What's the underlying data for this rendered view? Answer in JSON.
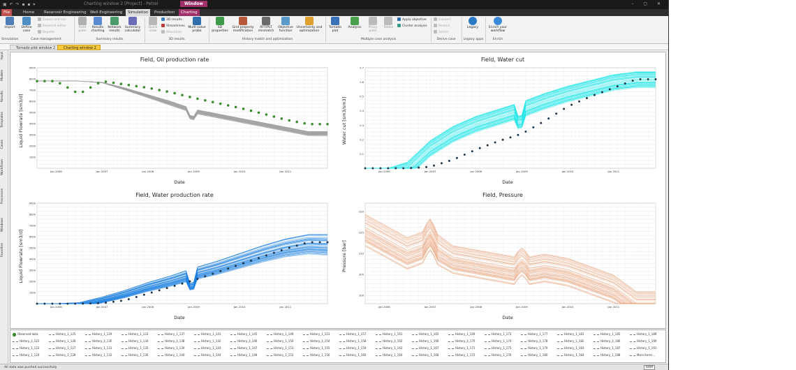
{
  "titlebar": {
    "quick_access": "▣ ↶ ↷ ▪ ▪ ▾",
    "document": "Charting window 2 [Project] - Petrel",
    "window_tag": "Window",
    "window_buttons": "– ▢ ✕"
  },
  "ribbon_tabs": [
    {
      "label": "File"
    },
    {
      "label": "Home"
    },
    {
      "label": "Reservoir Engineering"
    },
    {
      "label": "Well Engineering"
    },
    {
      "label": "Simulation"
    },
    {
      "label": "Production"
    },
    {
      "label": "Charting"
    }
  ],
  "ribbon": {
    "import": "Import",
    "define_case": "Define case",
    "export_and_run": "Export and run",
    "keyword_editor": "Keyword editor",
    "reports": "Reports",
    "group_simulation": "Simulation",
    "group_case_mgmt": "Case management",
    "field_plots": "Field plots",
    "results_charting": "Results charting",
    "network_results": "Network results",
    "summary_calculator": "Summary calculator",
    "group_summary": "Summary results",
    "quick_view": "Quick view",
    "results_3d": "3D results",
    "streamlines": "Streamlines",
    "allocation": "Allocation",
    "multi_value_probe": "Multi-value probe",
    "group_3d": "3D results",
    "sd_properties": "SD properties",
    "grid_property_mod": "Grid property modification",
    "rft_plt_mismatch": "RFT/PLT mismatch",
    "objective_function": "Objective function",
    "uncertainty_opt": "Uncertainty and optimization",
    "group_history": "History match and optimization",
    "tornado_plot": "Tornado plot",
    "analysis": "Analysis",
    "proxy_plots": "Proxy plots",
    "tables": "Tables",
    "apply_objective": "Apply objective",
    "cluster_analysis": "Cluster analysis",
    "group_multi": "Multiple case analysis",
    "convert": "Convert",
    "restart": "Restart",
    "sector": "Sector",
    "group_deriv": "Derive case",
    "legacy": "Legacy",
    "group_legacy": "Legacy apps",
    "enrich": "Enrich your workflow",
    "group_enrich": "Enrich"
  },
  "doc_tabs": {
    "tab1": "Tornado plot window 2",
    "tab2": "Charting window 2"
  },
  "sidebar_tabs": [
    "Input",
    "Models",
    "Results",
    "Templates",
    "Cases",
    "Workflows",
    "Processes",
    "Windows",
    "Favorites"
  ],
  "colors": {
    "oil_history": "#a0a0a0",
    "oil_observed": "#3a9a2a",
    "watercut_history": "#20e6e8",
    "water_history": "#1a7fe0",
    "pressure_history": "#e8a27a",
    "observed_dark": "#1d3a52"
  },
  "charts": [
    {
      "title": "Field, Oil production rate",
      "ylabel": "Liquid Flowrate [sm3/d]",
      "xlabel": "Date",
      "yticks": [
        "1000",
        "2000",
        "3000",
        "4000",
        "5000",
        "6000",
        "7000",
        "8000",
        "9000"
      ],
      "xticks": [
        "Jan 2006",
        "Jan 2007",
        "Jan 2008",
        "Jan 2009",
        "Jan 2010",
        "Jan 2011"
      ]
    },
    {
      "title": "Field, Water cut",
      "ylabel": "Water cut [sm3/sm3]",
      "xlabel": "Date",
      "yticks": [
        "0.1",
        "0.2",
        "0.3",
        "0.4",
        "0.5",
        "0.6",
        "0.7"
      ],
      "xticks": [
        "Jan 2006",
        "Jan 2007",
        "Jan 2008",
        "Jan 2009",
        "Jan 2010",
        "Jan 2011"
      ]
    },
    {
      "title": "Field, Water production rate",
      "ylabel": "Liquid Flowrate [sm3/d]",
      "xlabel": "Date",
      "yticks": [
        "1000",
        "2000",
        "3000",
        "4000",
        "5000",
        "6000",
        "7000",
        "8000",
        "9000"
      ],
      "xticks": [
        "Jan 2006",
        "Jan 2007",
        "Jan 2008",
        "Jan 2009",
        "Jan 2010",
        "Jan 2011"
      ]
    },
    {
      "title": "Field, Pressure",
      "ylabel": "Pressure [bar]",
      "xlabel": "Date",
      "yticks": [
        "300",
        "305",
        "310",
        "315",
        "320"
      ],
      "xticks": [
        "Jan 2006",
        "Jan 2007",
        "Jan 2008",
        "Jan 2009",
        "Jan 2010",
        "Jan 2011"
      ]
    }
  ],
  "chart_data": [
    {
      "type": "line",
      "title": "Field, Oil production rate",
      "xlabel": "Date",
      "ylabel": "Liquid Flowrate [sm3/d]",
      "ylim": [
        0,
        9000
      ],
      "x": [
        "2005-07",
        "2006-01",
        "2006-07",
        "2007-01",
        "2007-07",
        "2008-01",
        "2008-07",
        "2009-01",
        "2009-07",
        "2010-01",
        "2010-07",
        "2011-01",
        "2011-07"
      ],
      "series": [
        {
          "name": "Observed data",
          "values": [
            7800,
            7800,
            6650,
            7800,
            7500,
            7200,
            6800,
            6300,
            5850,
            5400,
            4900,
            4350,
            3950
          ]
        },
        {
          "values": [
            7800,
            7800,
            7800,
            7700,
            7200,
            6600,
            6000,
            5300,
            4900,
            4500,
            4100,
            3700,
            3300
          ]
        },
        {
          "values": [
            7800,
            7800,
            7800,
            7650,
            7000,
            6300,
            5600,
            4900,
            4500,
            4100,
            3700,
            3300,
            2900
          ]
        }
      ]
    },
    {
      "type": "line",
      "title": "Field, Water cut",
      "xlabel": "Date",
      "ylabel": "Water cut [sm3/sm3]",
      "ylim": [
        0,
        0.7
      ],
      "x": [
        "2005-07",
        "2006-01",
        "2006-07",
        "2007-01",
        "2007-07",
        "2008-01",
        "2008-07",
        "2009-01",
        "2009-07",
        "2010-01",
        "2010-07",
        "2011-01",
        "2011-07"
      ],
      "series": [
        {
          "name": "Observed data",
          "values": [
            0,
            0,
            0,
            0.01,
            0.06,
            0.13,
            0.19,
            0.24,
            0.33,
            0.43,
            0.5,
            0.56,
            0.62
          ]
        },
        {
          "values": [
            0,
            0,
            0.05,
            0.2,
            0.3,
            0.37,
            0.42,
            0.47,
            0.53,
            0.58,
            0.62,
            0.66,
            0.68
          ]
        }
      ]
    },
    {
      "type": "line",
      "title": "Field, Water production rate",
      "xlabel": "Date",
      "ylabel": "Liquid Flowrate [sm3/d]",
      "ylim": [
        0,
        9000
      ],
      "x": [
        "2005-07",
        "2006-01",
        "2006-07",
        "2007-01",
        "2007-07",
        "2008-01",
        "2008-07",
        "2009-01",
        "2009-07",
        "2010-01",
        "2010-07",
        "2011-01",
        "2011-07"
      ],
      "series": [
        {
          "name": "Observed data",
          "values": [
            0,
            0,
            0,
            50,
            300,
            900,
            1500,
            2100,
            2800,
            3500,
            4200,
            4900,
            5500
          ]
        },
        {
          "values": [
            0,
            0,
            100,
            600,
            1200,
            1900,
            2500,
            3200,
            3800,
            4500,
            5200,
            5800,
            6200
          ]
        }
      ]
    },
    {
      "type": "line",
      "title": "Field, Pressure",
      "xlabel": "Date",
      "ylabel": "Pressure [bar]",
      "ylim": [
        298,
        322
      ],
      "x": [
        "2005-07",
        "2006-01",
        "2006-07",
        "2007-01",
        "2007-07",
        "2008-01",
        "2008-07",
        "2009-01",
        "2009-07",
        "2010-01",
        "2010-07",
        "2011-01",
        "2011-07"
      ],
      "series": [
        {
          "values": [
            320,
            317,
            314,
            316,
            312,
            311,
            310,
            309,
            310,
            309,
            307,
            305,
            301
          ]
        },
        {
          "values": [
            316,
            313,
            310,
            312,
            309,
            308,
            307,
            306,
            307,
            306,
            304,
            302,
            298
          ]
        }
      ]
    }
  ],
  "legend": [
    "Observed data",
    "History_1_125",
    "History_1_129",
    "History_1_133",
    "History_1_137",
    "History_1_141",
    "History_1_145",
    "History_1_149",
    "History_1_153",
    "History_1_157",
    "History_1_161",
    "History_1_165",
    "History_1_169",
    "History_1_173",
    "History_1_177",
    "History_1_181",
    "History_1_185",
    "History_1_189",
    "History_1_122",
    "History_1_126",
    "History_1_130",
    "History_1_134",
    "History_1_138",
    "History_1_142",
    "History_1_146",
    "History_1_150",
    "History_1_154",
    "History_1_158",
    "History_1_162",
    "History_1_166",
    "History_1_170",
    "History_1_174",
    "History_1_178",
    "History_1_182",
    "History_1_186",
    "History_1_190",
    "History_1_123",
    "History_1_127",
    "History_1_131",
    "History_1_135",
    "History_1_139",
    "History_1_143",
    "History_1_147",
    "History_1_151",
    "History_1_155",
    "History_1_159",
    "History_1_163",
    "History_1_167",
    "History_1_171",
    "History_1_175",
    "History_1_179",
    "History_1_183",
    "History_1_187",
    "History_1_191",
    "History_1_124",
    "History_1_128",
    "History_1_132",
    "History_1_136",
    "History_1_140",
    "History_1_144",
    "History_1_148",
    "History_1_152",
    "History_1_156",
    "History_1_160",
    "History_1_164",
    "History_1_168",
    "History_1_172",
    "History_1_176",
    "History_1_180",
    "History_1_184",
    "History_1_188",
    "More items..."
  ],
  "status": {
    "message": "All data was pushed successfully",
    "ram": "RAM"
  }
}
